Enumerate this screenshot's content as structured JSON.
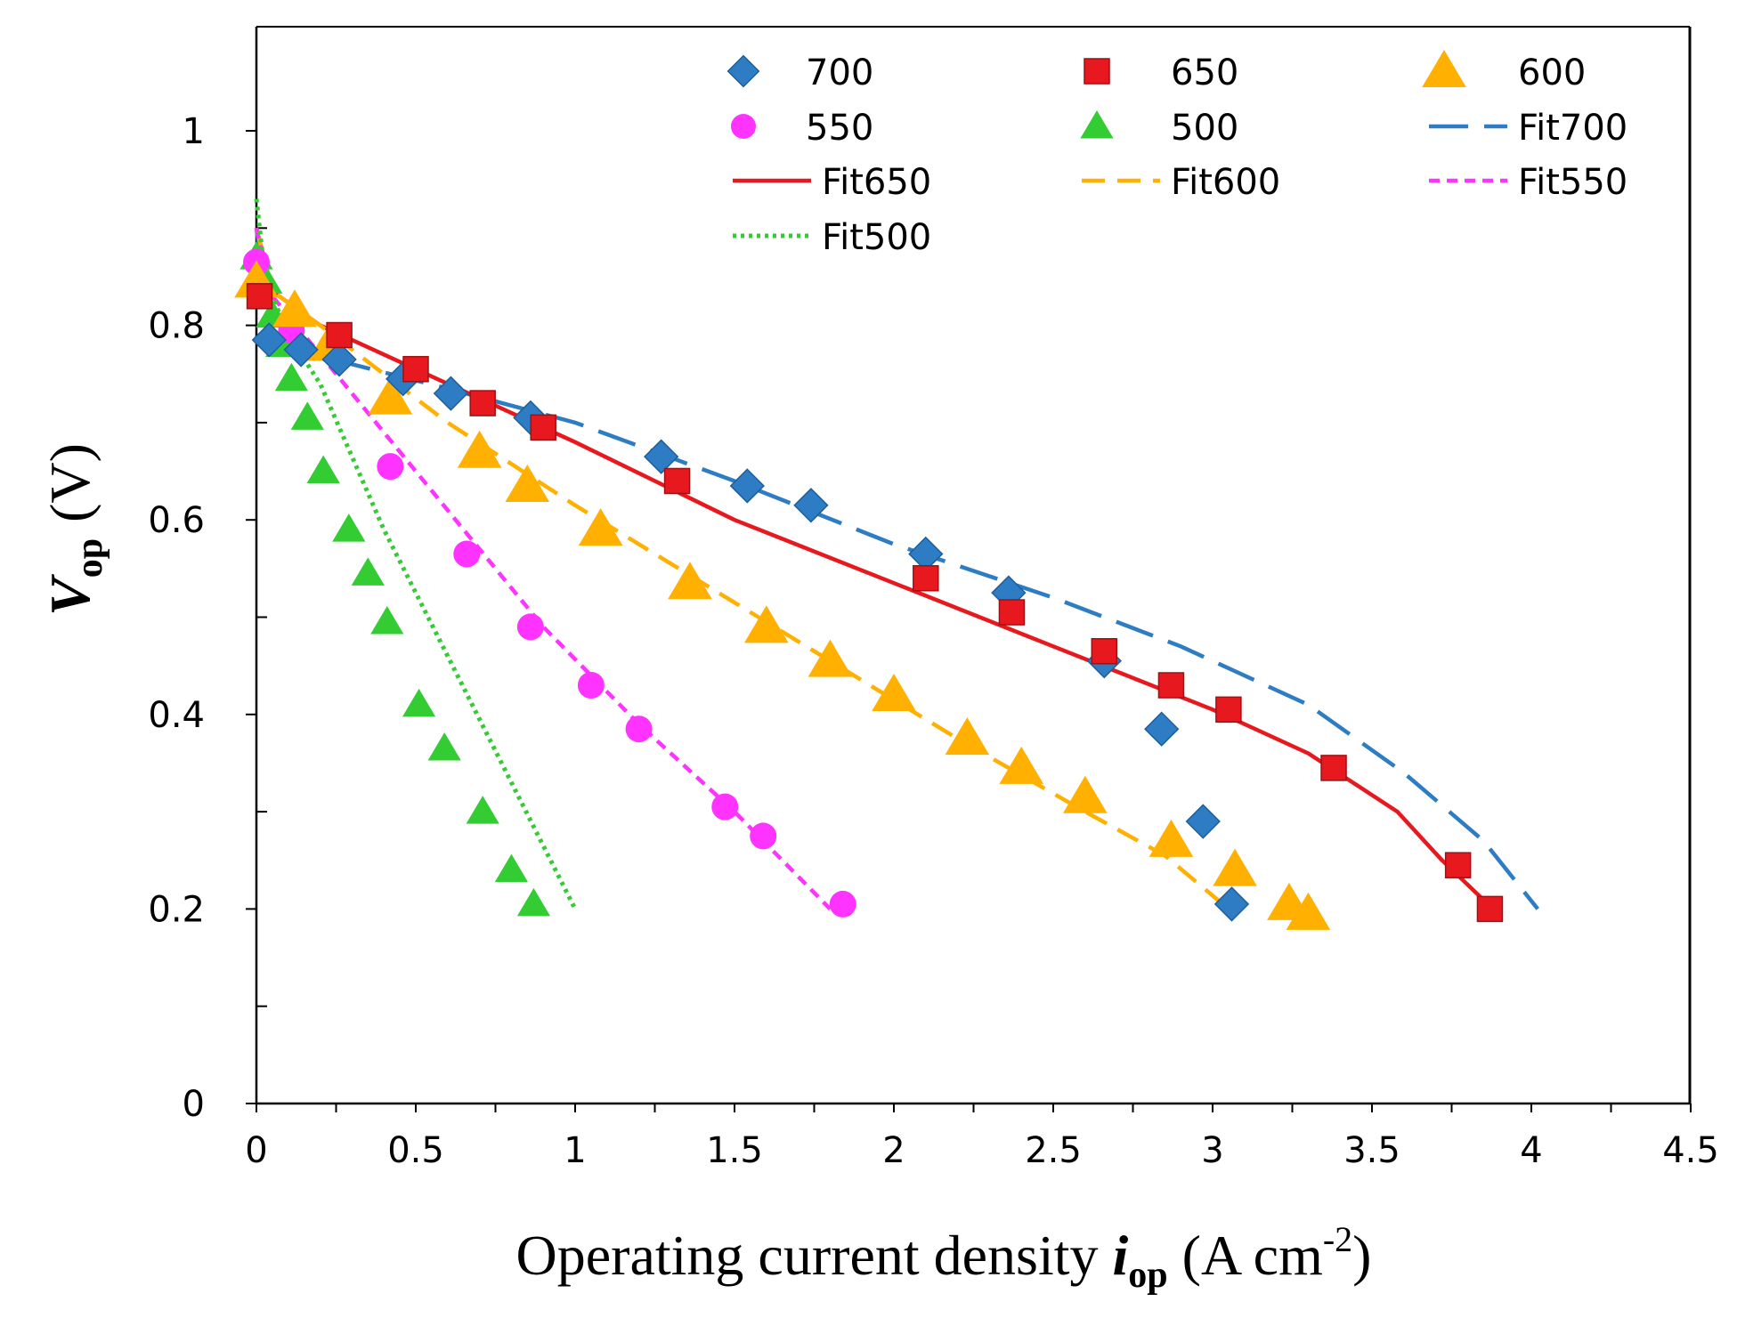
{
  "chart_data": {
    "type": "scatter",
    "xlabel": "Operating current density ",
    "xlabel_symbol": "i",
    "xlabel_sub": "op",
    "xlabel_unit_open": " (A cm",
    "xlabel_unit_sup": "-2",
    "xlabel_unit_close": ")",
    "ylabel_symbol": "V",
    "ylabel_sub": "op",
    "ylabel_unit": "(V)",
    "xlim": [
      0,
      4.5
    ],
    "ylim": [
      0,
      1.1
    ],
    "x_ticks": [
      0,
      0.5,
      1,
      1.5,
      2,
      2.5,
      3,
      3.5,
      4,
      4.5
    ],
    "x_tick_labels": [
      "0",
      "0.5",
      "1",
      "1.5",
      "2",
      "2.5",
      "3",
      "3.5",
      "4",
      "4.5"
    ],
    "y_ticks": [
      0,
      0.2,
      0.4,
      0.6,
      0.8,
      1
    ],
    "y_tick_labels": [
      "0",
      "0.2",
      "0.4",
      "0.6",
      "0.8",
      "1"
    ],
    "y_minor_ticks": [
      0.1,
      0.3,
      0.5,
      0.7,
      0.9
    ],
    "grid": false,
    "legend_position": "top-right",
    "series": [
      {
        "name": "700",
        "kind": "marker",
        "marker": "diamond",
        "color": "#2e7dc4",
        "x": [
          0.04,
          0.14,
          0.26,
          0.46,
          0.61,
          0.86,
          1.27,
          1.54,
          1.74,
          2.1,
          2.36,
          2.66,
          2.84,
          2.97,
          3.06
        ],
        "y": [
          0.785,
          0.775,
          0.765,
          0.745,
          0.73,
          0.705,
          0.665,
          0.635,
          0.615,
          0.565,
          0.525,
          0.455,
          0.385,
          0.29,
          0.205
        ]
      },
      {
        "name": "650",
        "kind": "marker",
        "marker": "square",
        "color": "#e8191e",
        "x": [
          0.01,
          0.26,
          0.5,
          0.71,
          0.9,
          1.32,
          2.1,
          2.37,
          2.66,
          2.87,
          3.05,
          3.38,
          3.77,
          3.87
        ],
        "y": [
          0.83,
          0.79,
          0.755,
          0.72,
          0.695,
          0.64,
          0.54,
          0.505,
          0.465,
          0.43,
          0.405,
          0.345,
          0.245,
          0.2
        ]
      },
      {
        "name": "600",
        "kind": "marker",
        "marker": "triangle",
        "color": "#ffb000",
        "x": [
          0.0,
          0.12,
          0.23,
          0.42,
          0.7,
          0.85,
          1.08,
          1.36,
          1.6,
          1.8,
          2.0,
          2.23,
          2.4,
          2.6,
          2.87,
          3.07,
          3.24,
          3.3
        ],
        "y": [
          0.845,
          0.815,
          0.78,
          0.725,
          0.67,
          0.635,
          0.59,
          0.535,
          0.49,
          0.455,
          0.42,
          0.375,
          0.345,
          0.315,
          0.27,
          0.24,
          0.205,
          0.195
        ]
      },
      {
        "name": "550",
        "kind": "marker",
        "marker": "circle",
        "color": "#ff33ff",
        "x": [
          0.0,
          0.11,
          0.42,
          0.66,
          0.86,
          1.05,
          1.2,
          1.47,
          1.59,
          1.84
        ],
        "y": [
          0.865,
          0.795,
          0.655,
          0.565,
          0.49,
          0.43,
          0.385,
          0.305,
          0.275,
          0.205
        ]
      },
      {
        "name": "500",
        "kind": "marker",
        "marker": "triangle",
        "color": "#33cc33",
        "x": [
          0.0,
          0.03,
          0.05,
          0.08,
          0.11,
          0.16,
          0.21,
          0.29,
          0.35,
          0.41,
          0.51,
          0.59,
          0.71,
          0.8,
          0.87
        ],
        "y": [
          0.87,
          0.845,
          0.81,
          0.78,
          0.745,
          0.705,
          0.65,
          0.59,
          0.545,
          0.495,
          0.41,
          0.365,
          0.3,
          0.24,
          0.205
        ]
      },
      {
        "name": "Fit700",
        "kind": "line",
        "dash": "longdash",
        "color": "#2e7dc4",
        "x": [
          0.0,
          0.03,
          0.1,
          0.3,
          0.6,
          1.0,
          1.5,
          2.0,
          2.5,
          2.9,
          3.3,
          3.6,
          3.85,
          4.02
        ],
        "y": [
          0.9,
          0.83,
          0.785,
          0.76,
          0.735,
          0.7,
          0.64,
          0.575,
          0.52,
          0.47,
          0.41,
          0.34,
          0.27,
          0.2
        ]
      },
      {
        "name": "Fit650",
        "kind": "line",
        "dash": "solid",
        "color": "#e8191e",
        "x": [
          0.0,
          0.05,
          0.2,
          0.5,
          1.0,
          1.5,
          2.0,
          2.5,
          3.0,
          3.3,
          3.58,
          3.72,
          3.88
        ],
        "y": [
          0.9,
          0.835,
          0.8,
          0.755,
          0.68,
          0.6,
          0.535,
          0.47,
          0.405,
          0.36,
          0.3,
          0.25,
          0.2
        ]
      },
      {
        "name": "Fit600",
        "kind": "line",
        "dash": "dash",
        "color": "#ffb000",
        "x": [
          0.0,
          0.05,
          0.2,
          0.4,
          0.6,
          1.0,
          1.4,
          1.8,
          2.2,
          2.6,
          2.85,
          3.05
        ],
        "y": [
          0.9,
          0.835,
          0.8,
          0.75,
          0.7,
          0.615,
          0.535,
          0.455,
          0.375,
          0.3,
          0.255,
          0.2
        ]
      },
      {
        "name": "Fit550",
        "kind": "line",
        "dash": "shortdash",
        "color": "#ff33ff",
        "x": [
          0.0,
          0.05,
          0.15,
          0.3,
          0.6,
          0.9,
          1.2,
          1.5,
          1.8
        ],
        "y": [
          0.9,
          0.83,
          0.79,
          0.73,
          0.61,
          0.49,
          0.39,
          0.3,
          0.2
        ]
      },
      {
        "name": "Fit500",
        "kind": "line",
        "dash": "dot",
        "color": "#33cc33",
        "x": [
          0.0,
          0.02,
          0.05,
          0.1,
          0.2,
          0.4,
          0.6,
          0.8,
          1.0
        ],
        "y": [
          0.93,
          0.87,
          0.83,
          0.79,
          0.74,
          0.59,
          0.46,
          0.33,
          0.2
        ]
      }
    ]
  }
}
